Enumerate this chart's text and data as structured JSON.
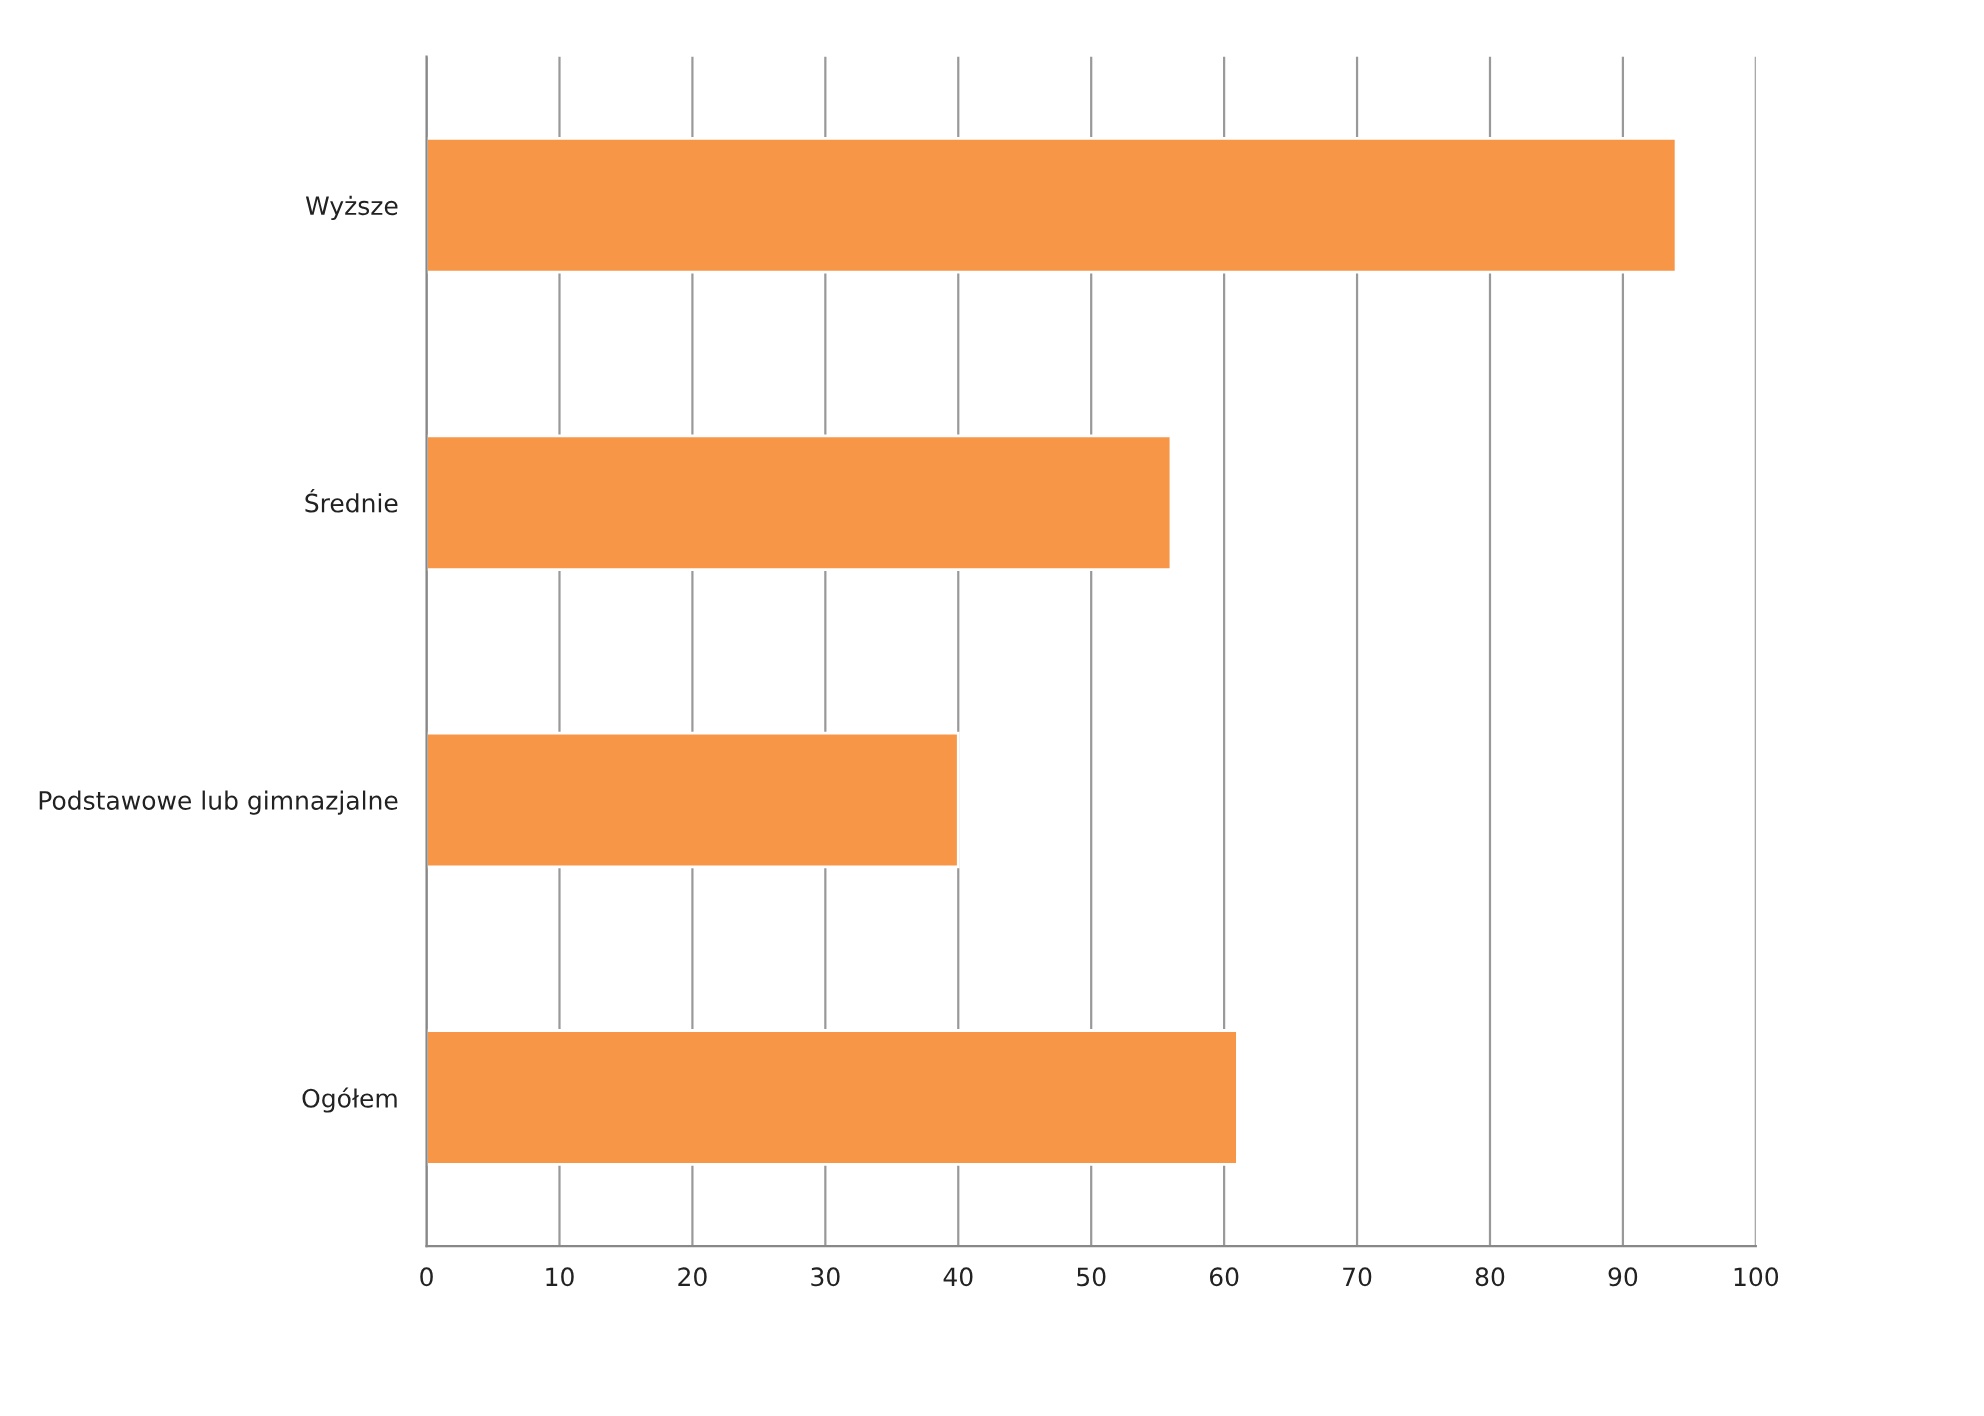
{
  "chart_data": {
    "type": "bar",
    "orientation": "horizontal",
    "categories": [
      "Wyższe",
      "Średnie",
      "Podstawowe lub gimnazjalne",
      "Ogółem"
    ],
    "values": [
      94,
      56,
      40,
      61
    ],
    "color": "#f79646",
    "xlim": [
      0,
      100
    ],
    "xticks": [
      0,
      10,
      20,
      30,
      40,
      50,
      60,
      70,
      80,
      90,
      100
    ],
    "grid": "x"
  }
}
